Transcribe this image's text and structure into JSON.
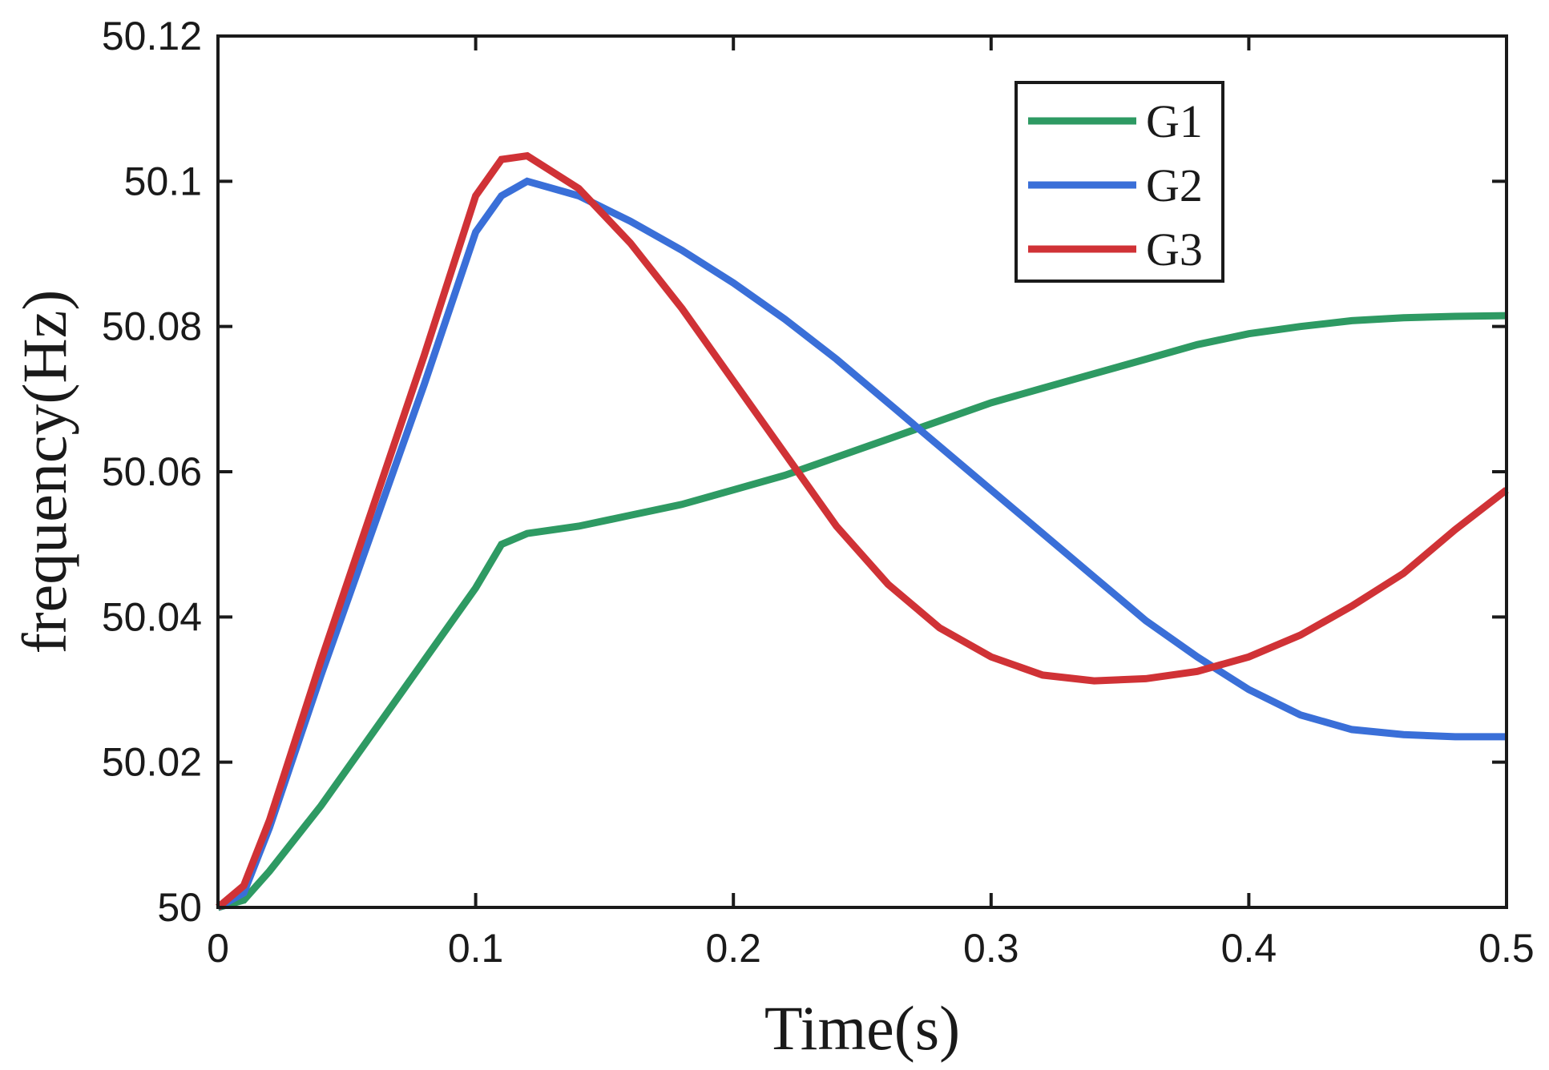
{
  "chart_data": {
    "type": "line",
    "title": "",
    "xlabel": "Time(s)",
    "ylabel": "frequency(Hz)",
    "xlim": [
      0,
      0.5
    ],
    "ylim": [
      50,
      50.12
    ],
    "xticks": [
      0,
      0.1,
      0.2,
      0.3,
      0.4,
      0.5
    ],
    "xtick_labels": [
      "0",
      "0.1",
      "0.2",
      "0.3",
      "0.4",
      "0.5"
    ],
    "yticks": [
      50,
      50.02,
      50.04,
      50.06,
      50.08,
      50.1,
      50.12
    ],
    "ytick_labels": [
      "50",
      "50.02",
      "50.04",
      "50.06",
      "50.08",
      "50.1",
      "50.12"
    ],
    "grid": false,
    "legend_position": "top-right",
    "series": [
      {
        "name": "G1",
        "color": "#2e9a63",
        "x": [
          0,
          0.01,
          0.02,
          0.04,
          0.06,
          0.08,
          0.1,
          0.11,
          0.12,
          0.14,
          0.16,
          0.18,
          0.2,
          0.22,
          0.24,
          0.26,
          0.28,
          0.3,
          0.32,
          0.34,
          0.36,
          0.38,
          0.4,
          0.42,
          0.44,
          0.46,
          0.48,
          0.5
        ],
        "values": [
          50.0,
          50.001,
          50.005,
          50.014,
          50.024,
          50.034,
          50.044,
          50.05,
          50.0515,
          50.0525,
          50.054,
          50.0555,
          50.0575,
          50.0595,
          50.062,
          50.0645,
          50.067,
          50.0695,
          50.0715,
          50.0735,
          50.0755,
          50.0775,
          50.079,
          50.08,
          50.0808,
          50.0812,
          50.0814,
          50.0815
        ]
      },
      {
        "name": "G2",
        "color": "#3a6fd8",
        "x": [
          0,
          0.01,
          0.02,
          0.04,
          0.06,
          0.08,
          0.1,
          0.11,
          0.12,
          0.14,
          0.16,
          0.18,
          0.2,
          0.22,
          0.24,
          0.26,
          0.28,
          0.3,
          0.32,
          0.34,
          0.36,
          0.38,
          0.4,
          0.42,
          0.44,
          0.46,
          0.48,
          0.5
        ],
        "values": [
          50.0,
          50.002,
          50.011,
          50.032,
          50.052,
          50.072,
          50.093,
          50.098,
          50.1,
          50.098,
          50.0945,
          50.0905,
          50.086,
          50.081,
          50.0755,
          50.0695,
          50.0635,
          50.0575,
          50.0515,
          50.0455,
          50.0395,
          50.0345,
          50.03,
          50.0265,
          50.0245,
          50.0238,
          50.0235,
          50.0235
        ]
      },
      {
        "name": "G3",
        "color": "#d03236",
        "x": [
          0,
          0.01,
          0.02,
          0.04,
          0.06,
          0.08,
          0.1,
          0.11,
          0.12,
          0.14,
          0.16,
          0.18,
          0.2,
          0.22,
          0.24,
          0.26,
          0.28,
          0.3,
          0.32,
          0.34,
          0.36,
          0.38,
          0.4,
          0.42,
          0.44,
          0.46,
          0.48,
          0.5
        ],
        "values": [
          50.0,
          50.003,
          50.012,
          50.034,
          50.055,
          50.076,
          50.098,
          50.103,
          50.1035,
          50.099,
          50.0915,
          50.0825,
          50.0725,
          50.0625,
          50.0525,
          50.0445,
          50.0385,
          50.0345,
          50.032,
          50.0312,
          50.0315,
          50.0325,
          50.0345,
          50.0375,
          50.0415,
          50.046,
          50.052,
          50.0575
        ]
      }
    ]
  }
}
